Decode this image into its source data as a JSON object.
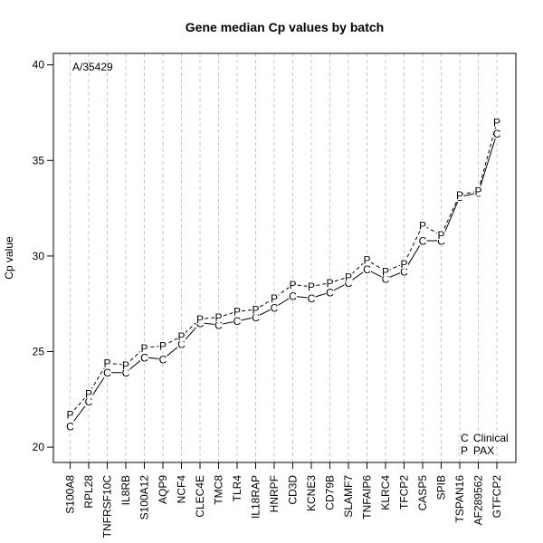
{
  "chart_data": {
    "type": "line",
    "title": "Gene median Cp values by batch",
    "ylabel": "Cp value",
    "xlabel": "",
    "annotation": "A/35429",
    "ylim": [
      19.2,
      40.6
    ],
    "yticks": [
      20,
      25,
      30,
      35,
      40
    ],
    "grid": "vertical dashed",
    "legend_position": "bottom-right",
    "categories": [
      "S100A8",
      "RPL28",
      "TNFRSF10C",
      "IL8RB",
      "S100A12",
      "AQP9",
      "NCF4",
      "CLEC4E",
      "TMC8",
      "TLR4",
      "IL18RAP",
      "HNRPF",
      "CD3D",
      "KCNE3",
      "CD79B",
      "SLAMF7",
      "TNFAIP6",
      "KLRC4",
      "TFCP2",
      "CASP5",
      "SPIB",
      "TSPAN16",
      "AF289562",
      "GTFCP2"
    ],
    "series": [
      {
        "name": "Clinical",
        "marker": "C",
        "line_style": "solid",
        "values": [
          21.1,
          22.4,
          23.9,
          23.9,
          24.7,
          24.6,
          25.4,
          26.5,
          26.4,
          26.6,
          26.8,
          27.3,
          27.9,
          27.8,
          28.1,
          28.6,
          29.3,
          28.8,
          29.2,
          30.8,
          30.8,
          33.1,
          33.3,
          36.4
        ]
      },
      {
        "name": "PAX",
        "marker": "P",
        "line_style": "dashed",
        "values": [
          21.7,
          22.8,
          24.4,
          24.3,
          25.2,
          25.3,
          25.8,
          26.7,
          26.8,
          27.1,
          27.2,
          27.8,
          28.5,
          28.4,
          28.6,
          28.9,
          29.8,
          29.2,
          29.6,
          31.6,
          31.1,
          33.2,
          33.4,
          37.0
        ]
      }
    ]
  }
}
